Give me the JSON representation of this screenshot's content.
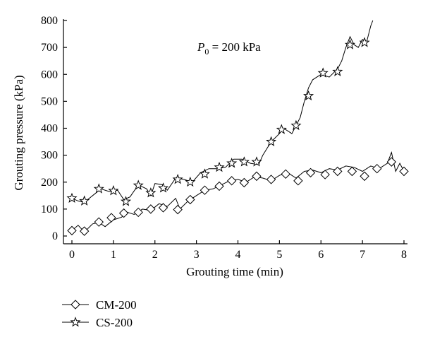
{
  "chart_data": {
    "type": "line",
    "xlabel": "Grouting time (min)",
    "ylabel": "Grouting pressure (kPa)",
    "xlim": [
      0,
      8
    ],
    "ylim": [
      0,
      800
    ],
    "xticks": [
      "0",
      "1",
      "2",
      "3",
      "4",
      "5",
      "6",
      "7",
      "8"
    ],
    "yticks": [
      "0",
      "100",
      "200",
      "300",
      "400",
      "500",
      "600",
      "700",
      "800"
    ],
    "grid": false,
    "legend_position": "bottom-left",
    "annotation": {
      "var": "P",
      "sub": "0",
      "rest": " = 200 kPa"
    },
    "series": [
      {
        "name": "CM-200",
        "marker": "diamond",
        "line": [
          [
            0,
            20
          ],
          [
            0.15,
            40
          ],
          [
            0.3,
            15
          ],
          [
            0.5,
            45
          ],
          [
            0.65,
            50
          ],
          [
            0.8,
            35
          ],
          [
            1,
            60
          ],
          [
            1.2,
            70
          ],
          [
            1.3,
            90
          ],
          [
            1.5,
            80
          ],
          [
            1.7,
            100
          ],
          [
            1.9,
            95
          ],
          [
            2.1,
            120
          ],
          [
            2.3,
            110
          ],
          [
            2.5,
            140
          ],
          [
            2.6,
            100
          ],
          [
            2.8,
            130
          ],
          [
            3,
            150
          ],
          [
            3.2,
            170
          ],
          [
            3.4,
            175
          ],
          [
            3.6,
            190
          ],
          [
            3.8,
            205
          ],
          [
            4,
            210
          ],
          [
            4.2,
            200
          ],
          [
            4.4,
            220
          ],
          [
            4.6,
            215
          ],
          [
            4.8,
            205
          ],
          [
            5,
            225
          ],
          [
            5.2,
            235
          ],
          [
            5.4,
            215
          ],
          [
            5.6,
            240
          ],
          [
            5.8,
            245
          ],
          [
            6,
            235
          ],
          [
            6.2,
            250
          ],
          [
            6.4,
            245
          ],
          [
            6.6,
            260
          ],
          [
            6.8,
            255
          ],
          [
            7,
            240
          ],
          [
            7.2,
            260
          ],
          [
            7.4,
            250
          ],
          [
            7.6,
            270
          ],
          [
            7.7,
            310
          ],
          [
            7.8,
            240
          ],
          [
            7.9,
            270
          ],
          [
            8,
            240
          ]
        ],
        "markers": [
          [
            0,
            20
          ],
          [
            0.3,
            18
          ],
          [
            0.65,
            52
          ],
          [
            0.95,
            68
          ],
          [
            1.25,
            85
          ],
          [
            1.6,
            88
          ],
          [
            1.9,
            100
          ],
          [
            2.2,
            105
          ],
          [
            2.55,
            98
          ],
          [
            2.85,
            135
          ],
          [
            3.2,
            170
          ],
          [
            3.55,
            185
          ],
          [
            3.85,
            205
          ],
          [
            4.15,
            198
          ],
          [
            4.45,
            222
          ],
          [
            4.8,
            210
          ],
          [
            5.15,
            230
          ],
          [
            5.45,
            205
          ],
          [
            5.75,
            235
          ],
          [
            6.1,
            228
          ],
          [
            6.4,
            240
          ],
          [
            6.75,
            240
          ],
          [
            7.05,
            222
          ],
          [
            7.35,
            250
          ],
          [
            7.7,
            275
          ],
          [
            8,
            240
          ]
        ]
      },
      {
        "name": "CS-200",
        "marker": "star",
        "line": [
          [
            0,
            140
          ],
          [
            0.15,
            130
          ],
          [
            0.3,
            125
          ],
          [
            0.5,
            150
          ],
          [
            0.7,
            175
          ],
          [
            0.9,
            165
          ],
          [
            1.1,
            170
          ],
          [
            1.25,
            135
          ],
          [
            1.4,
            145
          ],
          [
            1.6,
            190
          ],
          [
            1.8,
            175
          ],
          [
            1.9,
            150
          ],
          [
            2,
            195
          ],
          [
            2.2,
            190
          ],
          [
            2.3,
            170
          ],
          [
            2.5,
            215
          ],
          [
            2.7,
            210
          ],
          [
            2.9,
            200
          ],
          [
            3.1,
            235
          ],
          [
            3.3,
            250
          ],
          [
            3.5,
            250
          ],
          [
            3.7,
            255
          ],
          [
            3.9,
            285
          ],
          [
            4.1,
            285
          ],
          [
            4.3,
            270
          ],
          [
            4.5,
            265
          ],
          [
            4.6,
            300
          ],
          [
            4.8,
            350
          ],
          [
            5,
            380
          ],
          [
            5.1,
            400
          ],
          [
            5.3,
            380
          ],
          [
            5.4,
            410
          ],
          [
            5.5,
            440
          ],
          [
            5.6,
            500
          ],
          [
            5.7,
            550
          ],
          [
            5.8,
            580
          ],
          [
            6,
            600
          ],
          [
            6.2,
            590
          ],
          [
            6.4,
            620
          ],
          [
            6.5,
            650
          ],
          [
            6.6,
            700
          ],
          [
            6.7,
            740
          ],
          [
            6.8,
            710
          ],
          [
            6.9,
            700
          ],
          [
            7,
            730
          ],
          [
            7.1,
            720
          ],
          [
            7.2,
            780
          ],
          [
            7.25,
            800
          ]
        ],
        "markers": [
          [
            0,
            140
          ],
          [
            0.3,
            130
          ],
          [
            0.65,
            175
          ],
          [
            1,
            168
          ],
          [
            1.3,
            128
          ],
          [
            1.6,
            188
          ],
          [
            1.9,
            160
          ],
          [
            2.2,
            178
          ],
          [
            2.55,
            210
          ],
          [
            2.85,
            200
          ],
          [
            3.2,
            230
          ],
          [
            3.55,
            255
          ],
          [
            3.85,
            270
          ],
          [
            4.15,
            275
          ],
          [
            4.45,
            275
          ],
          [
            4.8,
            350
          ],
          [
            5.05,
            395
          ],
          [
            5.4,
            410
          ],
          [
            5.7,
            520
          ],
          [
            6.05,
            605
          ],
          [
            6.4,
            610
          ],
          [
            6.7,
            710
          ],
          [
            7.05,
            718
          ]
        ]
      }
    ]
  }
}
